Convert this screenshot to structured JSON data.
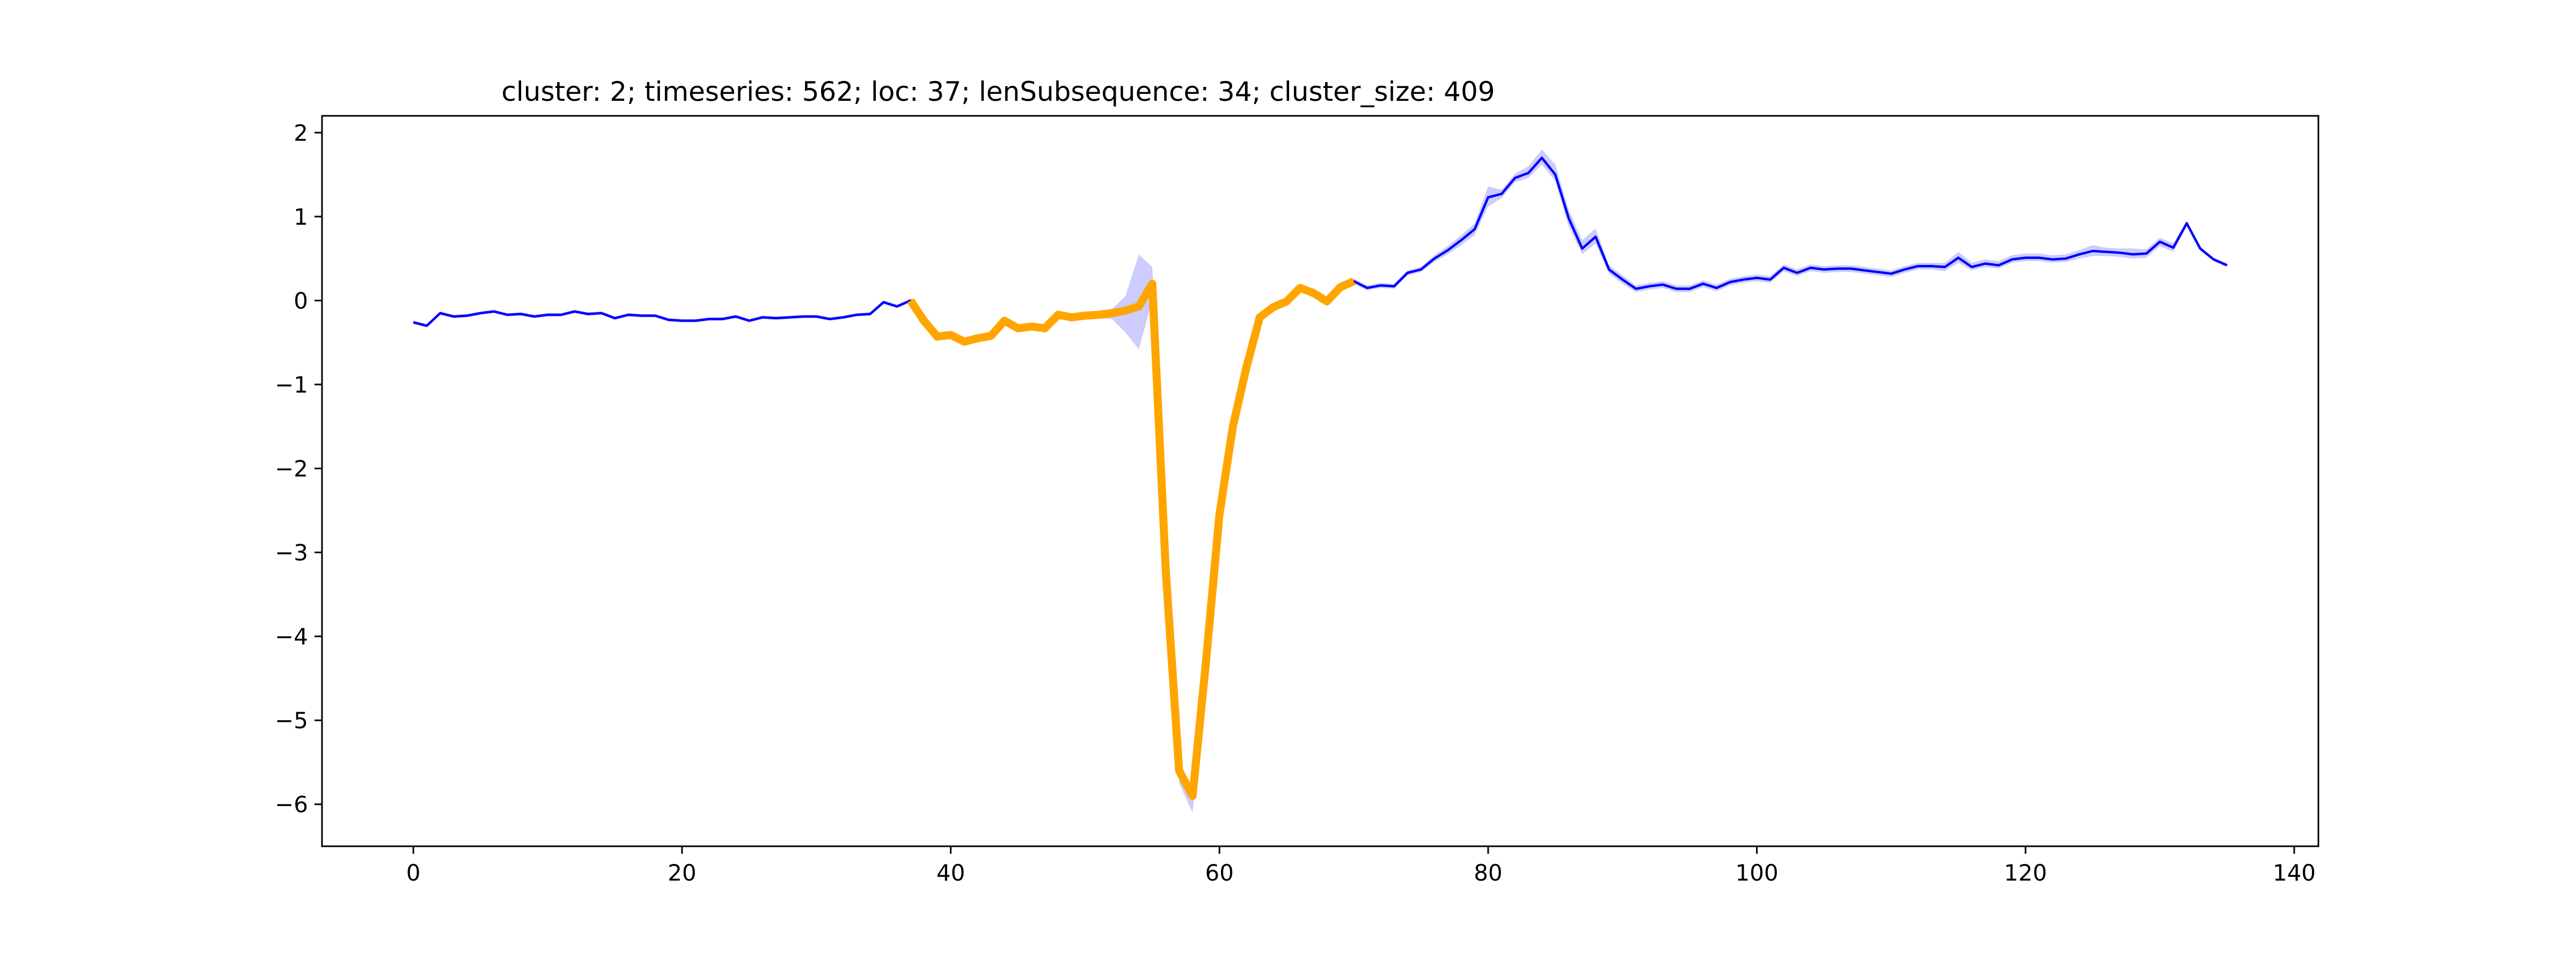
{
  "chart_data": {
    "type": "line",
    "title": "cluster: 2; timeseries: 562; loc: 37; lenSubsequence: 34; cluster_size: 409",
    "xlabel": "",
    "ylabel": "",
    "xlim": [
      -6.8,
      141.8
    ],
    "ylim": [
      -6.5,
      2.2
    ],
    "xticks": [
      0,
      20,
      40,
      60,
      80,
      100,
      120,
      140
    ],
    "yticks": [
      -6,
      -5,
      -4,
      -3,
      -2,
      -1,
      0,
      1,
      2
    ],
    "xtick_labels": [
      "0",
      "20",
      "40",
      "60",
      "80",
      "100",
      "120",
      "140"
    ],
    "ytick_labels": [
      "−6",
      "−5",
      "−4",
      "−3",
      "−2",
      "−1",
      "0",
      "1",
      "2"
    ],
    "grid": false,
    "colors": {
      "series": "#0000ff",
      "band": "#0000ff",
      "highlight": "#ffa500",
      "axes": "#000000"
    },
    "series": [
      {
        "x": [
          0,
          1,
          2,
          3,
          4,
          5,
          6,
          7,
          8,
          9,
          10,
          11,
          12,
          13,
          14,
          15,
          16,
          17,
          18,
          19,
          20,
          21,
          22,
          23,
          24,
          25,
          26,
          27,
          28,
          29,
          30,
          31,
          32,
          33,
          34,
          35,
          36,
          37,
          38,
          39,
          40,
          41,
          42,
          43,
          44,
          45,
          46,
          47,
          48,
          49,
          50,
          51,
          52,
          53,
          54,
          55,
          56,
          57,
          58,
          59,
          60,
          61,
          62,
          63,
          64,
          65,
          66,
          67,
          68,
          69,
          70,
          71,
          72,
          73,
          74,
          75,
          76,
          77,
          78,
          79,
          80,
          81,
          82,
          83,
          84,
          85,
          86,
          87,
          88,
          89,
          90,
          91,
          92,
          93,
          94,
          95,
          96,
          97,
          98,
          99,
          100,
          101,
          102,
          103,
          104,
          105,
          106,
          107,
          108,
          109,
          110,
          111,
          112,
          113,
          114,
          115,
          116,
          117,
          118,
          119,
          120,
          121,
          122,
          123,
          124,
          125,
          126,
          127,
          128,
          129,
          130,
          131,
          132,
          133,
          134,
          135
        ],
        "values": [
          -0.26,
          -0.3,
          -0.15,
          -0.19,
          -0.18,
          -0.15,
          -0.13,
          -0.17,
          -0.16,
          -0.19,
          -0.17,
          -0.17,
          -0.13,
          -0.16,
          -0.15,
          -0.21,
          -0.17,
          -0.18,
          -0.18,
          -0.23,
          -0.24,
          -0.24,
          -0.22,
          -0.22,
          -0.19,
          -0.24,
          -0.2,
          -0.21,
          -0.2,
          -0.19,
          -0.19,
          -0.22,
          -0.2,
          -0.17,
          -0.16,
          -0.02,
          -0.07,
          0.0,
          -0.24,
          -0.43,
          -0.41,
          -0.49,
          -0.45,
          -0.42,
          -0.24,
          -0.33,
          -0.31,
          -0.33,
          -0.17,
          -0.2,
          -0.18,
          -0.17,
          -0.15,
          -0.12,
          -0.07,
          0.2,
          -3.2,
          -5.6,
          -5.9,
          -4.3,
          -2.55,
          -1.5,
          -0.8,
          -0.2,
          -0.08,
          -0.01,
          0.15,
          0.09,
          -0.01,
          0.16,
          0.23,
          0.15,
          0.18,
          0.17,
          0.33,
          0.37,
          0.5,
          0.6,
          0.72,
          0.85,
          1.23,
          1.27,
          1.46,
          1.52,
          1.7,
          1.5,
          0.98,
          0.62,
          0.76,
          0.37,
          0.25,
          0.14,
          0.17,
          0.19,
          0.14,
          0.14,
          0.2,
          0.15,
          0.22,
          0.25,
          0.27,
          0.25,
          0.39,
          0.33,
          0.39,
          0.37,
          0.38,
          0.38,
          0.36,
          0.34,
          0.32,
          0.37,
          0.41,
          0.41,
          0.4,
          0.51,
          0.4,
          0.44,
          0.42,
          0.49,
          0.51,
          0.51,
          0.49,
          0.5,
          0.55,
          0.59,
          0.58,
          0.57,
          0.55,
          0.56,
          0.7,
          0.63,
          0.92,
          0.62,
          0.49,
          0.42
        ],
        "band_upper": [
          -0.24,
          -0.28,
          -0.13,
          -0.17,
          -0.16,
          -0.13,
          -0.11,
          -0.15,
          -0.14,
          -0.17,
          -0.15,
          -0.15,
          -0.11,
          -0.14,
          -0.13,
          -0.19,
          -0.15,
          -0.16,
          -0.16,
          -0.21,
          -0.22,
          -0.22,
          -0.2,
          -0.2,
          -0.17,
          -0.22,
          -0.18,
          -0.19,
          -0.18,
          -0.17,
          -0.17,
          -0.2,
          -0.18,
          -0.15,
          -0.14,
          0.0,
          -0.05,
          0.02,
          -0.22,
          -0.41,
          -0.39,
          -0.47,
          -0.43,
          -0.4,
          -0.22,
          -0.31,
          -0.29,
          -0.31,
          -0.15,
          -0.18,
          -0.15,
          -0.13,
          -0.1,
          0.05,
          0.55,
          0.4,
          -3.1,
          -5.5,
          -5.8,
          -4.25,
          -2.5,
          -1.47,
          -0.77,
          -0.17,
          -0.05,
          0.02,
          0.18,
          0.12,
          0.02,
          0.19,
          0.26,
          0.18,
          0.21,
          0.2,
          0.36,
          0.4,
          0.54,
          0.65,
          0.78,
          0.92,
          1.36,
          1.32,
          1.51,
          1.6,
          1.8,
          1.62,
          1.08,
          0.72,
          0.86,
          0.42,
          0.3,
          0.18,
          0.21,
          0.23,
          0.18,
          0.18,
          0.24,
          0.19,
          0.26,
          0.29,
          0.31,
          0.29,
          0.43,
          0.37,
          0.43,
          0.41,
          0.42,
          0.42,
          0.4,
          0.38,
          0.36,
          0.41,
          0.45,
          0.45,
          0.45,
          0.58,
          0.45,
          0.49,
          0.47,
          0.54,
          0.56,
          0.56,
          0.54,
          0.55,
          0.6,
          0.66,
          0.63,
          0.62,
          0.62,
          0.61,
          0.75,
          0.68,
          0.95,
          0.64,
          0.51,
          0.44
        ],
        "band_lower": [
          -0.28,
          -0.32,
          -0.17,
          -0.21,
          -0.2,
          -0.17,
          -0.15,
          -0.19,
          -0.18,
          -0.21,
          -0.19,
          -0.19,
          -0.15,
          -0.18,
          -0.17,
          -0.23,
          -0.19,
          -0.2,
          -0.2,
          -0.25,
          -0.26,
          -0.26,
          -0.24,
          -0.24,
          -0.21,
          -0.26,
          -0.22,
          -0.23,
          -0.22,
          -0.21,
          -0.21,
          -0.24,
          -0.22,
          -0.19,
          -0.18,
          -0.04,
          -0.09,
          -0.02,
          -0.26,
          -0.45,
          -0.43,
          -0.51,
          -0.47,
          -0.44,
          -0.26,
          -0.35,
          -0.33,
          -0.35,
          -0.19,
          -0.22,
          -0.21,
          -0.21,
          -0.22,
          -0.38,
          -0.58,
          0.0,
          -3.3,
          -5.75,
          -6.1,
          -4.4,
          -2.6,
          -1.53,
          -0.83,
          -0.23,
          -0.11,
          -0.04,
          0.12,
          0.06,
          -0.04,
          0.13,
          0.2,
          0.12,
          0.15,
          0.14,
          0.3,
          0.34,
          0.46,
          0.55,
          0.66,
          0.78,
          1.12,
          1.22,
          1.41,
          1.46,
          1.62,
          1.42,
          0.88,
          0.55,
          0.68,
          0.32,
          0.2,
          0.1,
          0.13,
          0.15,
          0.1,
          0.1,
          0.16,
          0.11,
          0.18,
          0.21,
          0.23,
          0.21,
          0.35,
          0.29,
          0.35,
          0.33,
          0.34,
          0.34,
          0.32,
          0.3,
          0.28,
          0.33,
          0.37,
          0.37,
          0.35,
          0.45,
          0.36,
          0.4,
          0.38,
          0.45,
          0.47,
          0.47,
          0.45,
          0.46,
          0.5,
          0.53,
          0.53,
          0.52,
          0.5,
          0.51,
          0.65,
          0.58,
          0.89,
          0.6,
          0.47,
          0.4
        ]
      }
    ],
    "highlight": {
      "start": 37,
      "end": 70
    }
  }
}
